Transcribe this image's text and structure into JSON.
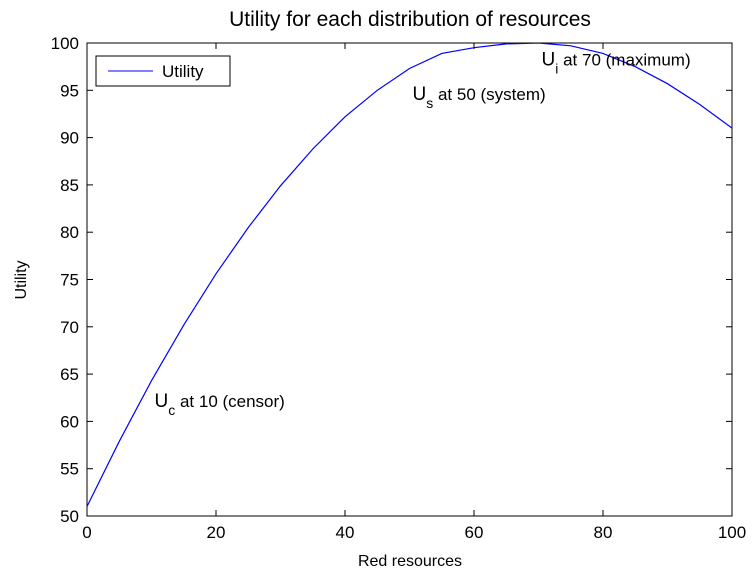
{
  "chart_data": {
    "type": "line",
    "title": "Utility for each distribution of resources",
    "xlabel": "Red resources",
    "ylabel": "Utility",
    "xlim": [
      0,
      100
    ],
    "ylim": [
      50,
      100
    ],
    "xticks": [
      0,
      20,
      40,
      60,
      80,
      100
    ],
    "yticks": [
      50,
      55,
      60,
      65,
      70,
      75,
      80,
      85,
      90,
      95,
      100
    ],
    "grid": false,
    "legend": {
      "placement": "top-left",
      "entries": [
        "Utility"
      ]
    },
    "series": [
      {
        "name": "Utility",
        "color": "#0000ff",
        "x": [
          0,
          5,
          10,
          15,
          20,
          25,
          30,
          35,
          40,
          45,
          50,
          55,
          60,
          65,
          70,
          75,
          80,
          85,
          90,
          95,
          100
        ],
        "y": [
          51,
          57.9,
          64.3,
          70.2,
          75.6,
          80.5,
          84.9,
          88.8,
          92.2,
          95.0,
          97.3,
          98.9,
          99.5,
          99.9,
          100.0,
          99.7,
          98.9,
          97.5,
          95.7,
          93.5,
          91.0
        ]
      }
    ],
    "annotations": [
      {
        "main": "U",
        "sub": "c",
        "rest": " at 10 (censor)",
        "x": 10,
        "y": 61.5
      },
      {
        "main": "U",
        "sub": "s",
        "rest": " at 50 (system)",
        "x": 50,
        "y": 94
      },
      {
        "main": "U",
        "sub": "i",
        "rest": " at 70 (maximum)",
        "x": 70,
        "y": 97.6
      }
    ]
  }
}
